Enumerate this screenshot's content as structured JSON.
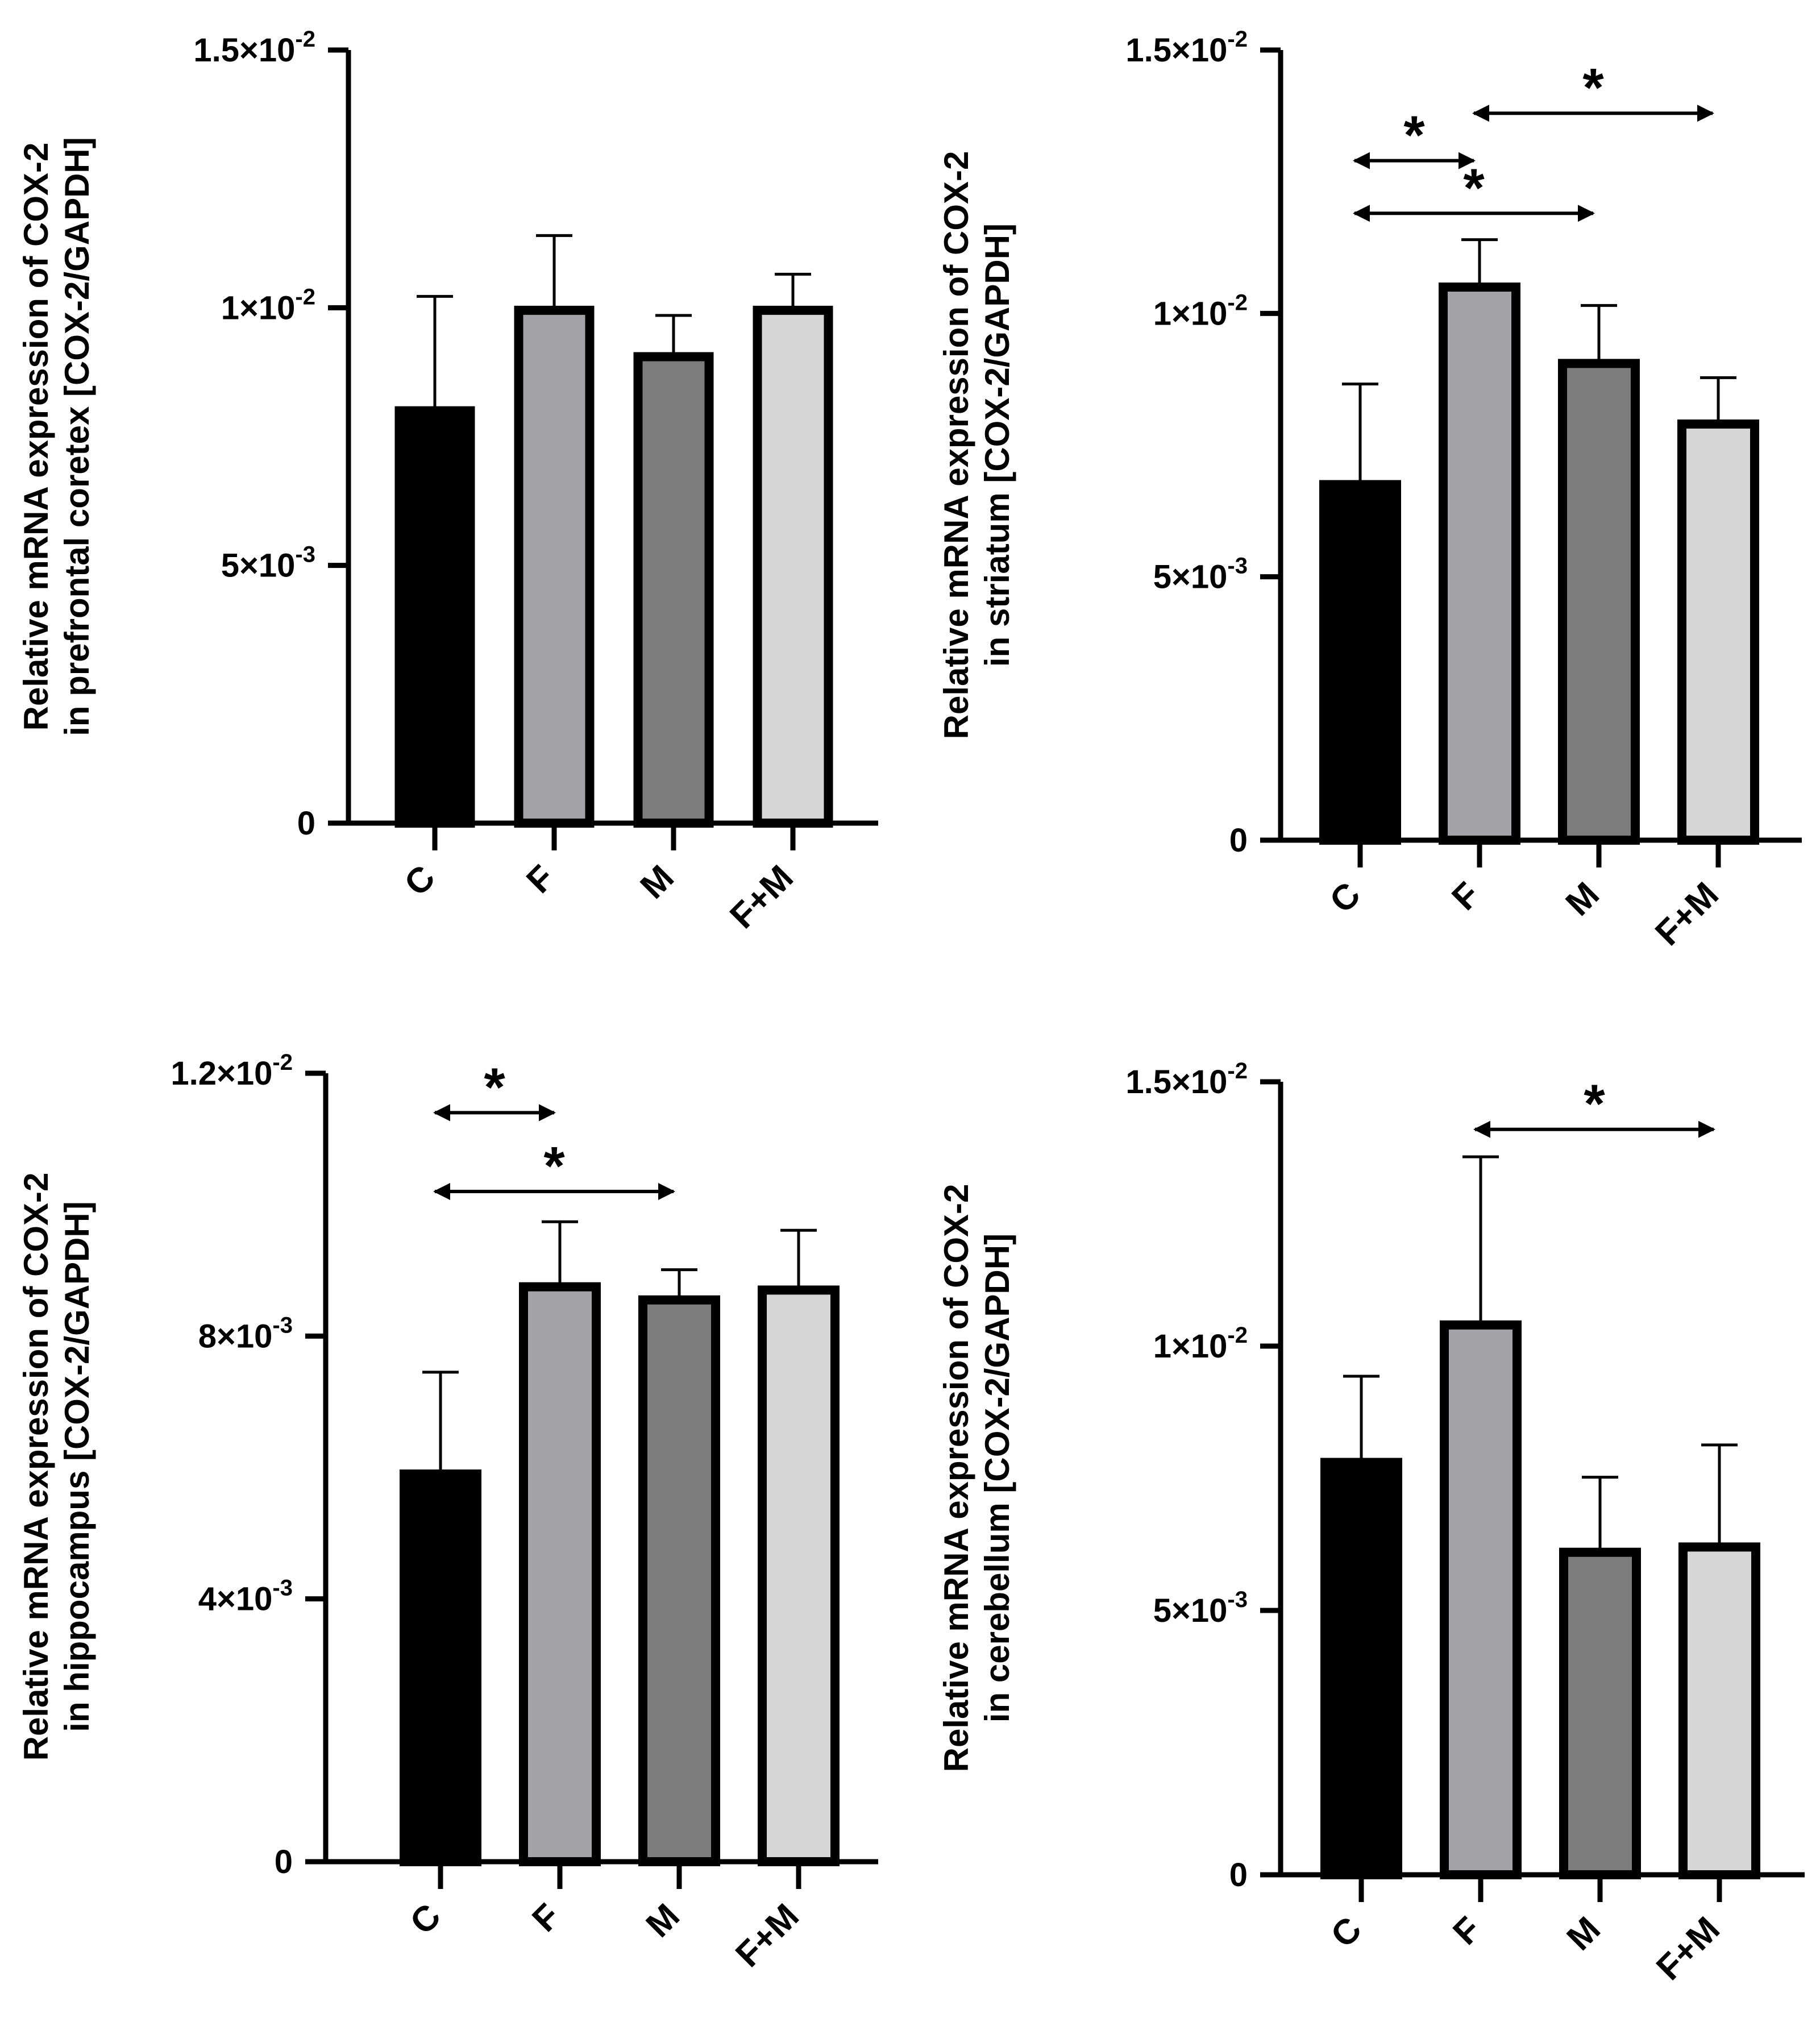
{
  "figure": {
    "panel_count": 4
  },
  "chart_data": [
    {
      "type": "bar",
      "panel": "top-left",
      "title": "",
      "ylabel": [
        "Relative mRNA expression of COX-2",
        "in prefrontal coretex [COX-2/GAPDH]"
      ],
      "xlabel": "",
      "categories": [
        "C",
        "F",
        "M",
        "F+M"
      ],
      "values": [
        0.008,
        0.00995,
        0.00905,
        0.00995
      ],
      "errors": [
        0.00222,
        0.00145,
        0.0008,
        0.0007
      ],
      "bar_colors": [
        "#000000",
        "#a3a3a7",
        "#7c7c7c",
        "#d6d6d6"
      ],
      "ylim": [
        0,
        0.015
      ],
      "ticks": [
        0,
        0.005,
        0.01,
        0.015
      ],
      "tick_labels": [
        {
          "mantissa": "0",
          "exp": ""
        },
        {
          "mantissa": "5×10",
          "exp": "-3"
        },
        {
          "mantissa": "1×10",
          "exp": "-2"
        },
        {
          "mantissa": "1.5×10",
          "exp": "-2"
        }
      ],
      "significance": []
    },
    {
      "type": "bar",
      "panel": "top-right",
      "title": "",
      "ylabel": [
        "Relative mRNA expression of COX-2",
        "in striatum [COX-2/GAPDH]"
      ],
      "xlabel": "",
      "categories": [
        "C",
        "F",
        "M",
        "F+M"
      ],
      "values": [
        0.00675,
        0.0105,
        0.00905,
        0.0079
      ],
      "errors": [
        0.00191,
        0.0009,
        0.0011,
        0.00088
      ],
      "bar_colors": [
        "#000000",
        "#a3a3a7",
        "#7c7c7c",
        "#d6d6d6"
      ],
      "ylim": [
        0,
        0.015
      ],
      "ticks": [
        0,
        0.005,
        0.01,
        0.015
      ],
      "tick_labels": [
        {
          "mantissa": "0",
          "exp": ""
        },
        {
          "mantissa": "5×10",
          "exp": "-3"
        },
        {
          "mantissa": "1×10",
          "exp": "-2"
        },
        {
          "mantissa": "1.5×10",
          "exp": "-2"
        }
      ],
      "significance": [
        {
          "from": "C",
          "to": "F",
          "level": 0.0129,
          "label": "*"
        },
        {
          "from": "C",
          "to": "M",
          "level": 0.0119,
          "label": "*"
        },
        {
          "from": "F",
          "to": "F+M",
          "level": 0.0138,
          "label": "*"
        }
      ]
    },
    {
      "type": "bar",
      "panel": "bottom-left",
      "title": "",
      "ylabel": [
        "Relative mRNA expression of COX-2",
        "in hippocampus [COX-2/GAPDH]"
      ],
      "xlabel": "",
      "categories": [
        "C",
        "F",
        "M",
        "F+M"
      ],
      "values": [
        0.0059,
        0.00875,
        0.00855,
        0.0087
      ],
      "errors": [
        0.00155,
        0.00099,
        0.00046,
        0.00091
      ],
      "bar_colors": [
        "#000000",
        "#a3a3a7",
        "#7c7c7c",
        "#d6d6d6"
      ],
      "ylim": [
        0,
        0.012
      ],
      "ticks": [
        0,
        0.004,
        0.008,
        0.012
      ],
      "tick_labels": [
        {
          "mantissa": "0",
          "exp": ""
        },
        {
          "mantissa": "4×10",
          "exp": "-3"
        },
        {
          "mantissa": "8×10",
          "exp": "-3"
        },
        {
          "mantissa": "1.2×10",
          "exp": "-2"
        }
      ],
      "significance": [
        {
          "from": "C",
          "to": "F",
          "level": 0.0114,
          "label": "*"
        },
        {
          "from": "C",
          "to": "M",
          "level": 0.0102,
          "label": "*"
        }
      ]
    },
    {
      "type": "bar",
      "panel": "bottom-right",
      "title": "",
      "ylabel": [
        "Relative mRNA expression of COX-2",
        "in cerebellum [COX-2/GAPDH]"
      ],
      "xlabel": "",
      "categories": [
        "C",
        "F",
        "M",
        "F+M"
      ],
      "values": [
        0.0078,
        0.0104,
        0.0061,
        0.0062
      ],
      "errors": [
        0.00163,
        0.00318,
        0.00142,
        0.00193
      ],
      "bar_colors": [
        "#000000",
        "#a3a3a7",
        "#7c7c7c",
        "#d6d6d6"
      ],
      "ylim": [
        0,
        0.015
      ],
      "ticks": [
        0,
        0.005,
        0.01,
        0.015
      ],
      "tick_labels": [
        {
          "mantissa": "0",
          "exp": ""
        },
        {
          "mantissa": "5×10",
          "exp": "-3"
        },
        {
          "mantissa": "1×10",
          "exp": "-2"
        },
        {
          "mantissa": "1.5×10",
          "exp": "-2"
        }
      ],
      "significance": [
        {
          "from": "F",
          "to": "F+M",
          "level": 0.0141,
          "label": "*"
        }
      ]
    }
  ]
}
